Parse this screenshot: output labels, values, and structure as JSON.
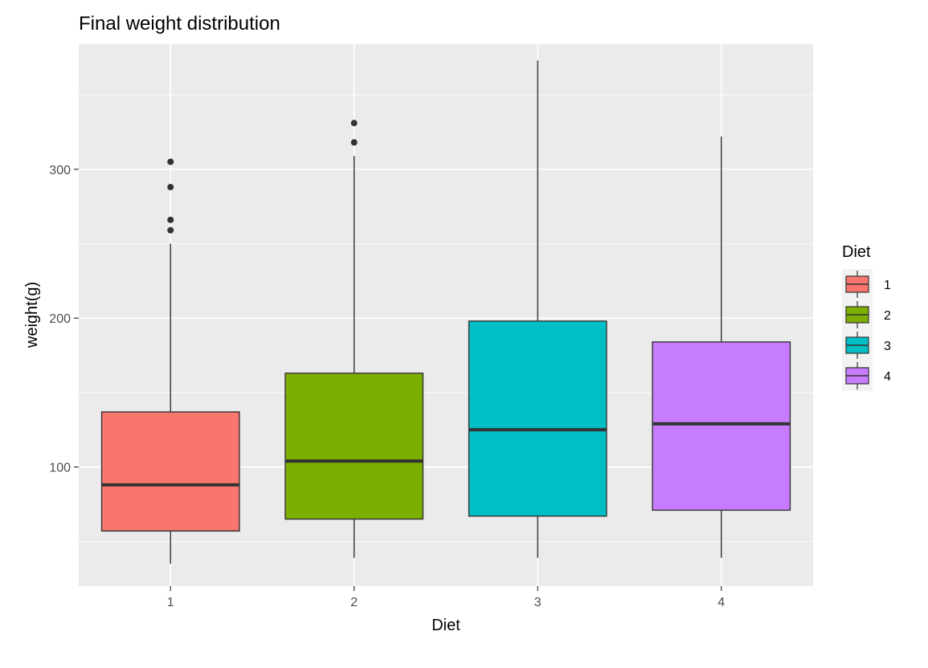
{
  "chart_data": {
    "type": "boxplot",
    "title": "Final weight distribution",
    "xlabel": "Diet",
    "ylabel": "weight(g)",
    "categories": [
      "1",
      "2",
      "3",
      "4"
    ],
    "y_ticks": [
      100,
      200,
      300
    ],
    "y_tick_labels": [
      "100",
      "200",
      "300"
    ],
    "ylim": [
      20,
      384
    ],
    "grid": true,
    "legend": {
      "title": "Diet",
      "position": "right",
      "entries": [
        "1",
        "2",
        "3",
        "4"
      ]
    },
    "colors": [
      "#F8766D",
      "#7CAE00",
      "#00BFC4",
      "#C77CFF"
    ],
    "panel_background": "#EBEBEB",
    "series": [
      {
        "category": "1",
        "min": 35,
        "q1": 57,
        "median": 88,
        "q3": 137,
        "max": 250,
        "outliers": [
          259,
          266,
          288,
          305
        ]
      },
      {
        "category": "2",
        "min": 39,
        "q1": 65,
        "median": 104,
        "q3": 163,
        "max": 309,
        "outliers": [
          318,
          331
        ]
      },
      {
        "category": "3",
        "min": 39,
        "q1": 67,
        "median": 125,
        "q3": 198,
        "max": 373,
        "outliers": []
      },
      {
        "category": "4",
        "min": 39,
        "q1": 71,
        "median": 129,
        "q3": 184,
        "max": 322,
        "outliers": []
      }
    ]
  }
}
